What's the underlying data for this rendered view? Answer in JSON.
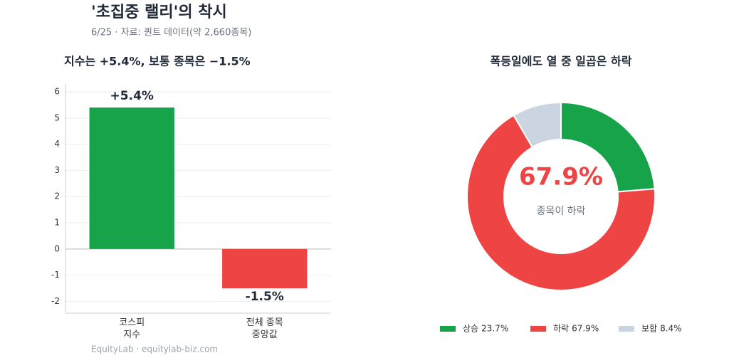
{
  "header": {
    "title": "'초집중 랠리'의 착시",
    "subtitle": "6/25 · 자료: 퀀트 데이터(약 2,660종목)"
  },
  "chart_data": [
    {
      "type": "bar",
      "title": "지수는 +5.4%, 보통 종목은 −1.5%",
      "categories": [
        "코스피\n지수",
        "전체 종목\n중앙값"
      ],
      "values": [
        5.4,
        -1.5
      ],
      "value_labels": [
        "+5.4%",
        "-1.5%"
      ],
      "colors": [
        "#16a34a",
        "#ef4444"
      ],
      "ylim": [
        -2.45,
        6.3
      ],
      "yticks": [
        -2,
        -1,
        0,
        1,
        2,
        3,
        4,
        5,
        6
      ],
      "grid": true
    },
    {
      "type": "donut",
      "title": "폭등일에도 열 중 일곱은 하락",
      "categories": [
        "상승",
        "하락",
        "보합"
      ],
      "values": [
        23.7,
        67.9,
        8.4
      ],
      "value_labels": [
        "23.7%",
        "67.9%",
        "8.4%"
      ],
      "colors": [
        "#16a34a",
        "#ef4444",
        "#cbd5e1"
      ],
      "center_label": "종목이 하락",
      "legend": "bottom"
    }
  ],
  "footer": "EquityLab · equitylab-biz.com"
}
